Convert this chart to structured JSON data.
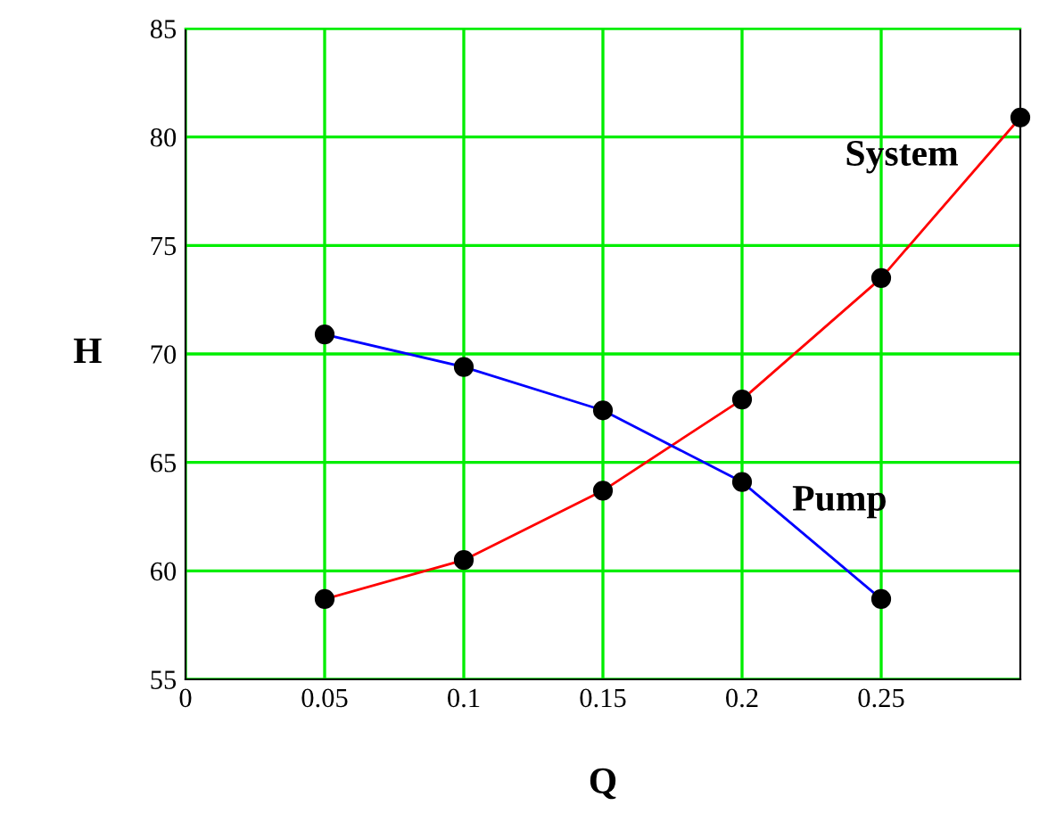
{
  "chart_data": {
    "type": "line",
    "xlabel": "Q",
    "ylabel": "H",
    "x": [
      0.05,
      0.1,
      0.15,
      0.2,
      0.25,
      0.3
    ],
    "series": [
      {
        "name": "System",
        "color": "#ff0000",
        "values": [
          58.7,
          60.5,
          63.7,
          67.9,
          73.5,
          80.9
        ]
      },
      {
        "name": "Pump",
        "color": "#0000ff",
        "values": [
          70.9,
          69.4,
          67.4,
          64.1,
          58.7,
          null
        ]
      }
    ],
    "xlim": [
      0,
      0.3
    ],
    "xticks": [
      0,
      0.05,
      0.1,
      0.15,
      0.2,
      0.25
    ],
    "ylim": [
      55,
      85
    ],
    "yticks": [
      55,
      60,
      65,
      70,
      75,
      80,
      85
    ],
    "grid": true,
    "marker": "circle",
    "line_style": "solid",
    "legend": false
  }
}
